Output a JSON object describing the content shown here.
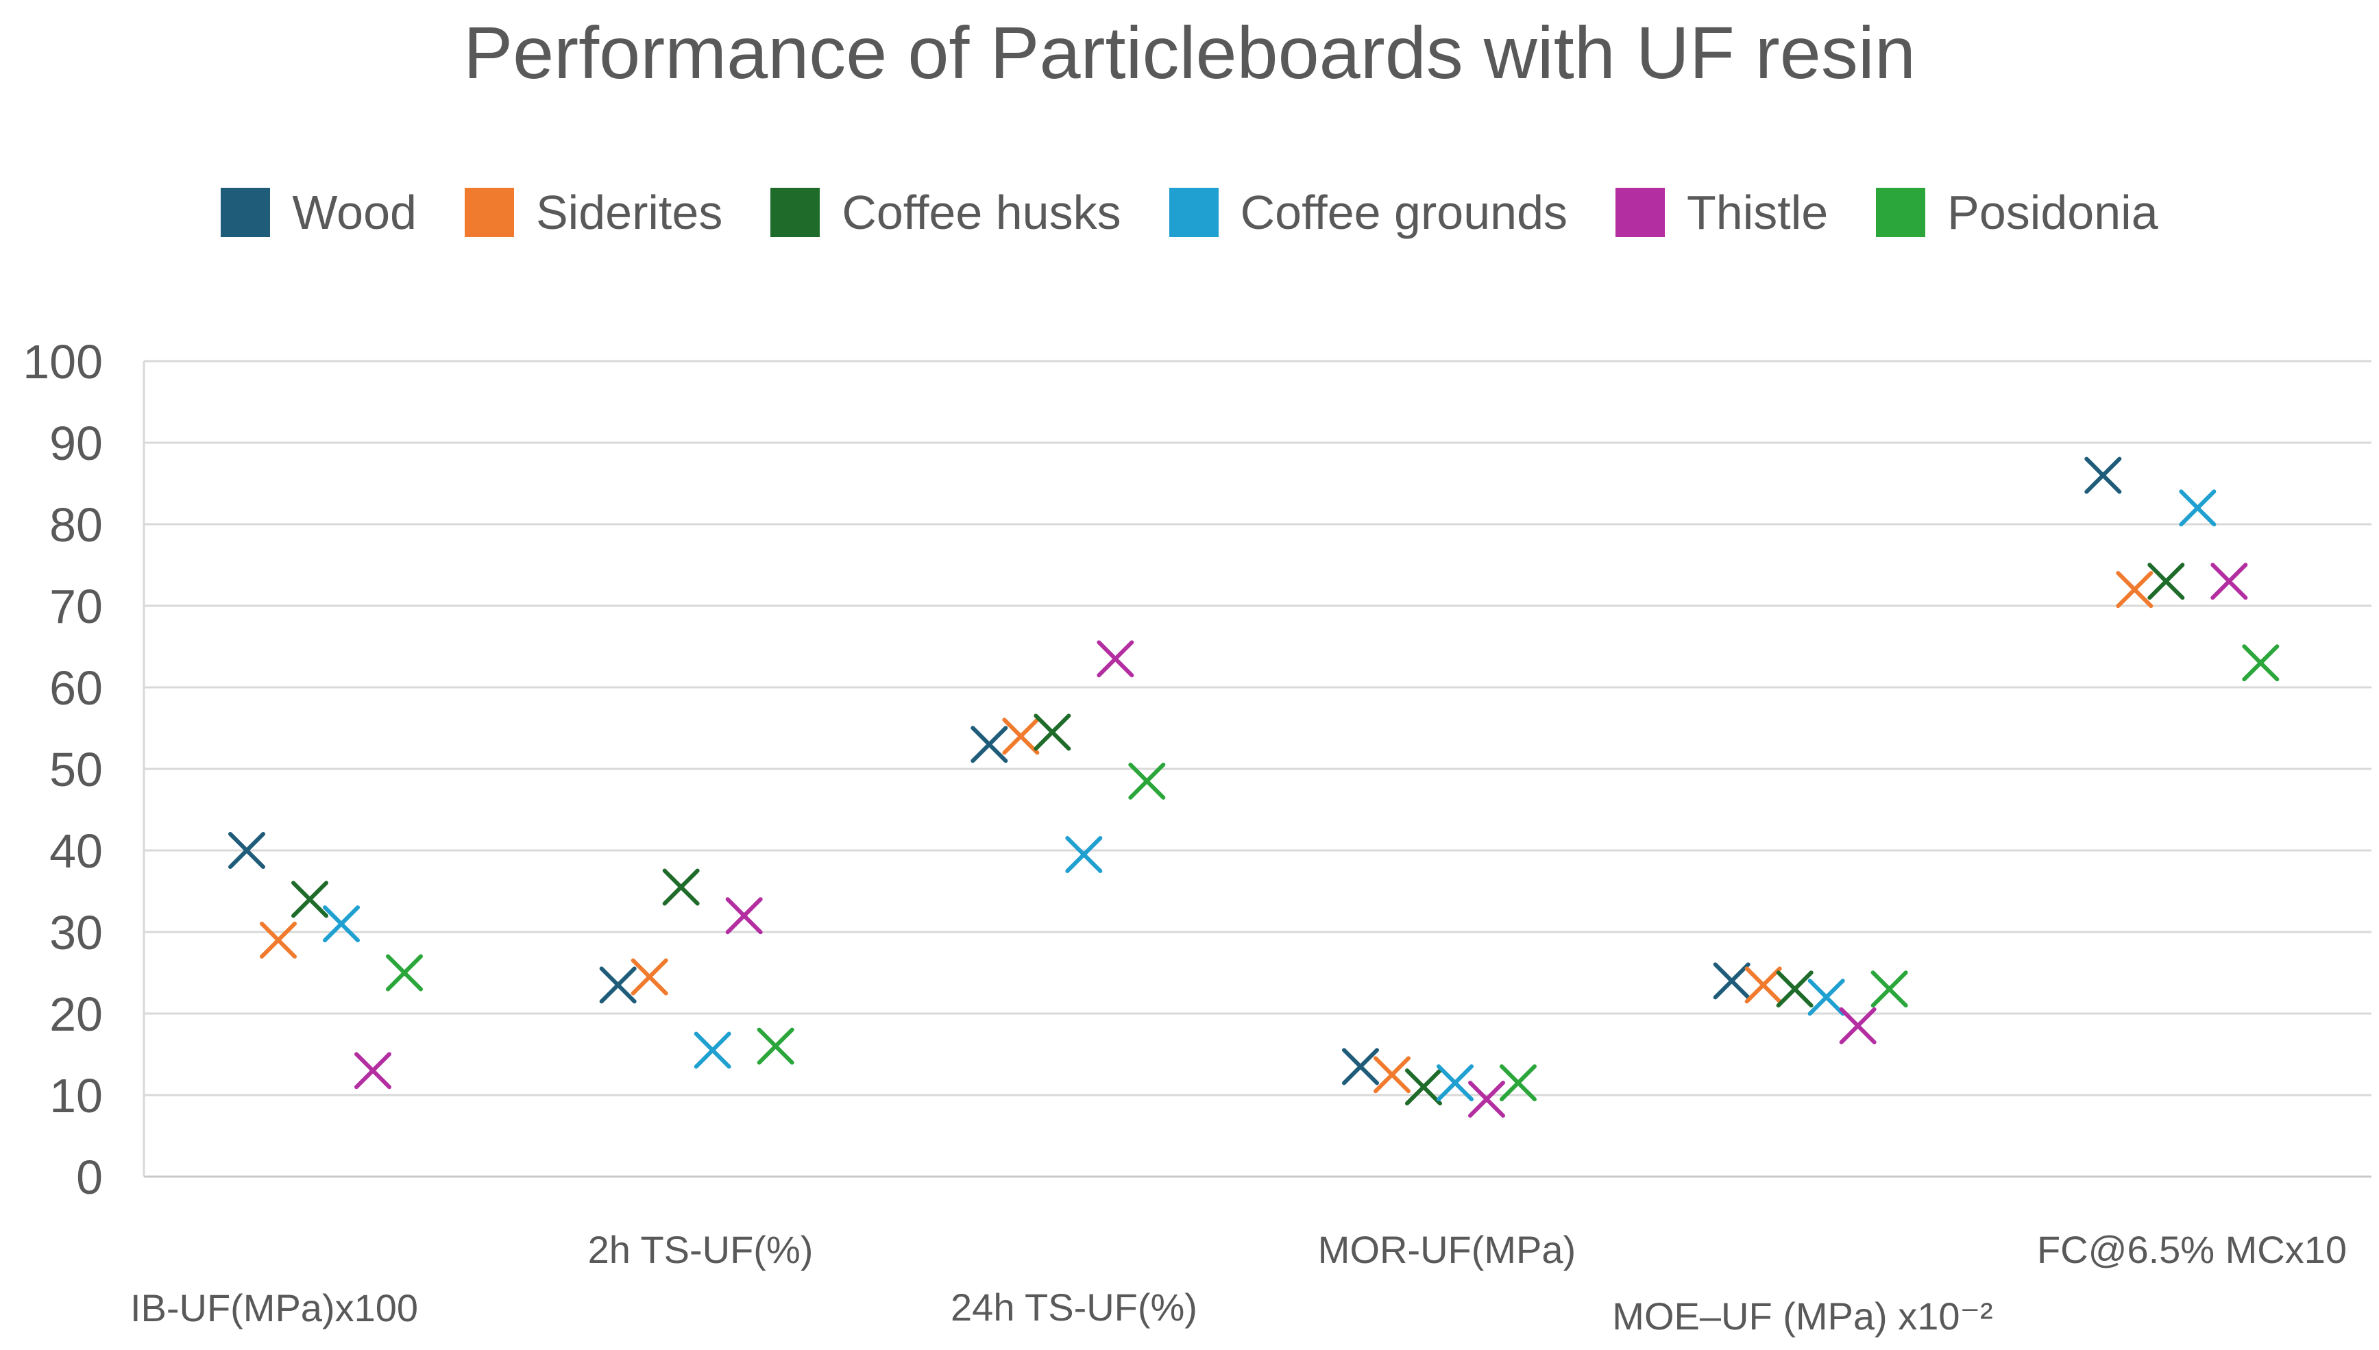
{
  "chart_data": {
    "type": "scatter",
    "title": "Performance of Particleboards with UF resin",
    "xlabel": "",
    "ylabel": "",
    "ylim": [
      0,
      100
    ],
    "y_ticks": [
      0,
      10,
      20,
      30,
      40,
      50,
      60,
      70,
      80,
      90,
      100
    ],
    "grid": true,
    "legend_position": "top",
    "marker": "x",
    "categories": [
      "IB-UF(MPa)x100",
      "2h TS-UF(%)",
      "24h TS-UF(%)",
      "MOR-UF(MPa)",
      "MOE–UF (MPa) x10⁻²",
      "FC@6.5% MCx10"
    ],
    "series": [
      {
        "name": "Wood",
        "color": "#1F5C7A",
        "values": [
          40,
          23.5,
          53,
          13.5,
          24,
          86
        ]
      },
      {
        "name": "Siderites",
        "color": "#F07B2E",
        "values": [
          29,
          24.5,
          54,
          12.5,
          23.5,
          72
        ]
      },
      {
        "name": "Coffee husks",
        "color": "#1E6B2A",
        "values": [
          34,
          35.5,
          54.5,
          11,
          23,
          73
        ]
      },
      {
        "name": "Coffee grounds",
        "color": "#1FA0D0",
        "values": [
          31,
          15.5,
          39.5,
          11.5,
          22,
          82
        ]
      },
      {
        "name": "Thistle",
        "color": "#B32EA0",
        "values": [
          13,
          32,
          63.5,
          9.5,
          18.5,
          73
        ]
      },
      {
        "name": "Posidonia",
        "color": "#2AA63A",
        "values": [
          25,
          16,
          48.5,
          11.5,
          23,
          63
        ]
      }
    ]
  }
}
